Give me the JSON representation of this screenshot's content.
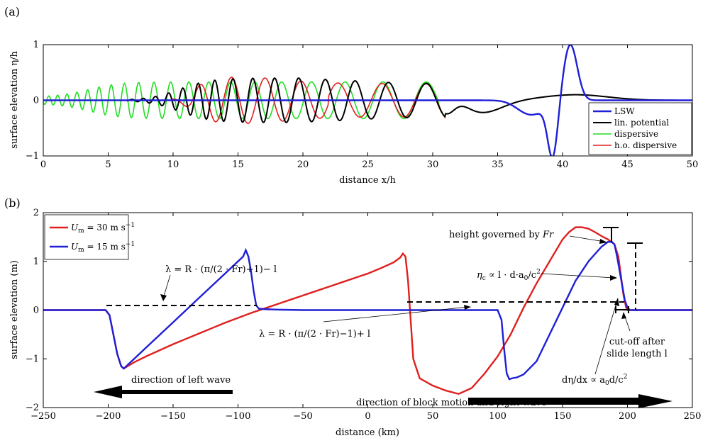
{
  "chart_data": [
    {
      "panel_label": "(a)",
      "type": "line",
      "xlabel": "distance x/h",
      "ylabel": "surface elevation η/h",
      "xlim": [
        0,
        50
      ],
      "ylim": [
        -1,
        1
      ],
      "xticks": [
        0,
        5,
        10,
        15,
        20,
        25,
        30,
        35,
        40,
        45,
        50
      ],
      "yticks": [
        -1,
        0,
        1
      ],
      "grid": false,
      "legend_position": "lower-right",
      "series": [
        {
          "name": "LSW",
          "color": "#1f1fd6"
        },
        {
          "name": "lin. potential",
          "color": "#000000"
        },
        {
          "name": "dispersive",
          "color": "#22dd22"
        },
        {
          "name": "h.o. dispersive",
          "color": "#e02020"
        }
      ]
    },
    {
      "panel_label": "(b)",
      "type": "line",
      "xlabel": "distance (km)",
      "ylabel": "surface elevation (m)",
      "xlim": [
        -250,
        250
      ],
      "ylim": [
        -2,
        2
      ],
      "xticks": [
        -250,
        -200,
        -150,
        -100,
        -50,
        0,
        50,
        100,
        150,
        200,
        250
      ],
      "yticks": [
        -2,
        -1,
        0,
        1,
        2
      ],
      "grid": false,
      "legend_position": "top-left",
      "series": [
        {
          "name": "U_m = 30 m s^-1",
          "name_parts": {
            "sym": "U",
            "sub": "m",
            "eq": " = 30 m s",
            "sup": "−1"
          },
          "color": "#e02020",
          "x": [
            -250,
            -202,
            -199,
            -196,
            -193,
            -190,
            -188,
            -180,
            -170,
            -160,
            -150,
            -140,
            -130,
            -120,
            -110,
            -100,
            -90,
            -80,
            -70,
            -60,
            -50,
            -40,
            -30,
            -20,
            -10,
            0,
            10,
            20,
            25,
            27,
            29,
            31,
            33,
            35,
            40,
            50,
            60,
            70,
            80,
            90,
            100,
            110,
            120,
            130,
            140,
            150,
            155,
            160,
            165,
            170,
            175,
            180,
            185,
            190,
            193,
            195,
            197,
            199,
            200,
            202,
            250
          ],
          "y": [
            0,
            0,
            -0.1,
            -0.5,
            -0.9,
            -1.15,
            -1.2,
            -1.07,
            -0.94,
            -0.82,
            -0.7,
            -0.59,
            -0.48,
            -0.37,
            -0.26,
            -0.16,
            -0.06,
            0.03,
            0.12,
            0.21,
            0.3,
            0.39,
            0.48,
            0.57,
            0.66,
            0.75,
            0.86,
            0.98,
            1.08,
            1.16,
            1.1,
            0.6,
            -0.2,
            -1.0,
            -1.4,
            -1.55,
            -1.65,
            -1.72,
            -1.6,
            -1.3,
            -0.95,
            -0.5,
            0.05,
            0.55,
            1.0,
            1.45,
            1.6,
            1.7,
            1.7,
            1.67,
            1.6,
            1.52,
            1.45,
            1.35,
            1.1,
            0.7,
            0.3,
            0.05,
            0,
            0,
            0
          ]
        },
        {
          "name": "U_m = 15 m s^-1",
          "name_parts": {
            "sym": "U",
            "sub": "m",
            "eq": " = 15 m s",
            "sup": "−1"
          },
          "color": "#1f1fd6",
          "x": [
            -250,
            -202,
            -199,
            -196,
            -193,
            -190,
            -188,
            -180,
            -170,
            -160,
            -150,
            -140,
            -130,
            -120,
            -110,
            -100,
            -96,
            -94,
            -92,
            -90,
            -88,
            -86,
            -84,
            -80,
            -70,
            -50,
            0,
            50,
            100,
            103,
            105,
            107,
            109,
            111,
            115,
            120,
            130,
            140,
            150,
            160,
            170,
            180,
            185,
            188,
            190,
            192,
            194,
            196,
            198,
            200,
            202,
            250
          ],
          "y": [
            0,
            0,
            -0.1,
            -0.5,
            -0.9,
            -1.15,
            -1.2,
            -1.0,
            -0.75,
            -0.5,
            -0.25,
            0.0,
            0.25,
            0.5,
            0.75,
            1.0,
            1.1,
            1.23,
            1.1,
            0.8,
            0.4,
            0.1,
            0.03,
            0.02,
            0.01,
            0,
            0,
            0,
            0,
            -0.2,
            -0.8,
            -1.3,
            -1.42,
            -1.4,
            -1.38,
            -1.32,
            -1.05,
            -0.5,
            0.05,
            0.6,
            1.0,
            1.3,
            1.4,
            1.4,
            1.35,
            1.1,
            0.8,
            0.5,
            0.2,
            0.05,
            0,
            0
          ]
        }
      ],
      "annotations": {
        "height_governed": "height governed by",
        "height_governed_var": "Fr",
        "lambda_left": "λ = R · (π/(2 · Fr)+1)− l",
        "lambda_right": "λ = R · (π/(2 · Fr)−1)+ l",
        "eta_c": "η",
        "eta_c_sub": "c",
        "eta_c_rest": " ∝ l · d·a",
        "eta_c_sub2": "0",
        "eta_c_rest2": "/c",
        "eta_c_sup": "2",
        "cutoff_line1": "cut-off after",
        "cutoff_line2": "slide length l",
        "slope_text": "dη/dx ∝ a",
        "slope_sub": "0",
        "slope_rest": "d/c",
        "slope_sup": "2",
        "left_wave": "direction of left wave",
        "right_wave": "direction of block motion and right wave"
      }
    }
  ]
}
